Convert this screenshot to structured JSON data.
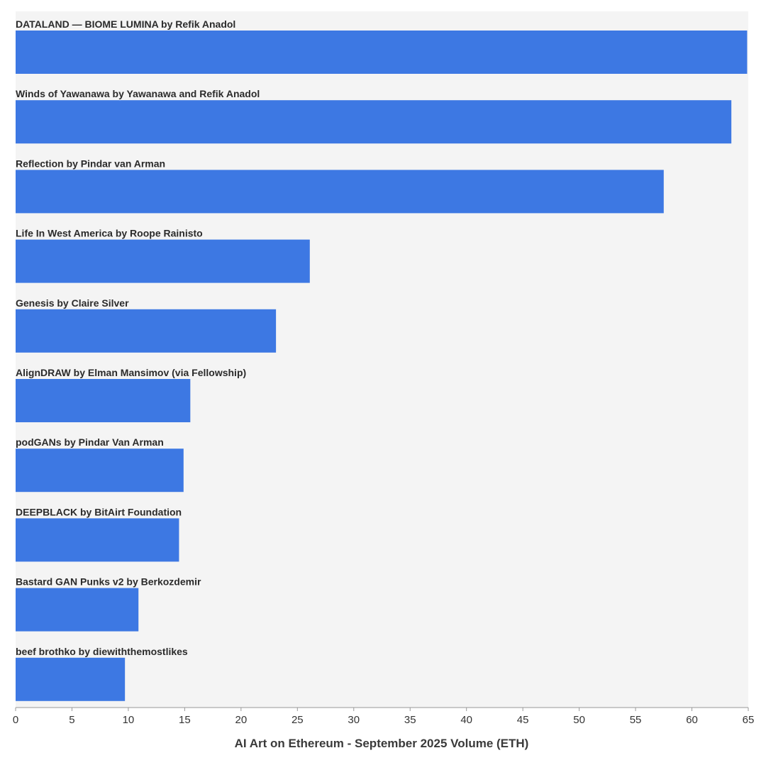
{
  "chart_data": {
    "type": "bar",
    "orientation": "horizontal",
    "title": "",
    "xlabel": "AI Art on Ethereum - September 2025 Volume (ETH)",
    "ylabel": "",
    "xlim": [
      0,
      65
    ],
    "xticks": [
      0,
      5,
      10,
      15,
      20,
      25,
      30,
      35,
      40,
      45,
      50,
      55,
      60,
      65
    ],
    "grid": false,
    "categories": [
      "DATALAND — BIOME LUMINA by Refik Anadol",
      "Winds of Yawanawa by Yawanawa and Refik Anadol",
      "Reflection by Pindar van Arman",
      "Life In West America by Roope Rainisto",
      "Genesis by Claire Silver",
      "AlignDRAW by Elman Mansimov (via Fellowship)",
      "podGANs by Pindar Van Arman",
      "DEEPBLACK by BitAirt Foundation",
      "Bastard GAN Punks v2 by Berkozdemir",
      "beef brothko by diewiththemostlikes"
    ],
    "values": [
      64.9,
      63.5,
      57.5,
      26.1,
      23.1,
      15.5,
      14.9,
      14.5,
      10.9,
      9.7
    ]
  },
  "colors": {
    "bar": "#3d78e3",
    "plot_background": "#f4f4f4",
    "page_background": "#ffffff",
    "axis": "#999999",
    "text": "#2b2b2b"
  }
}
